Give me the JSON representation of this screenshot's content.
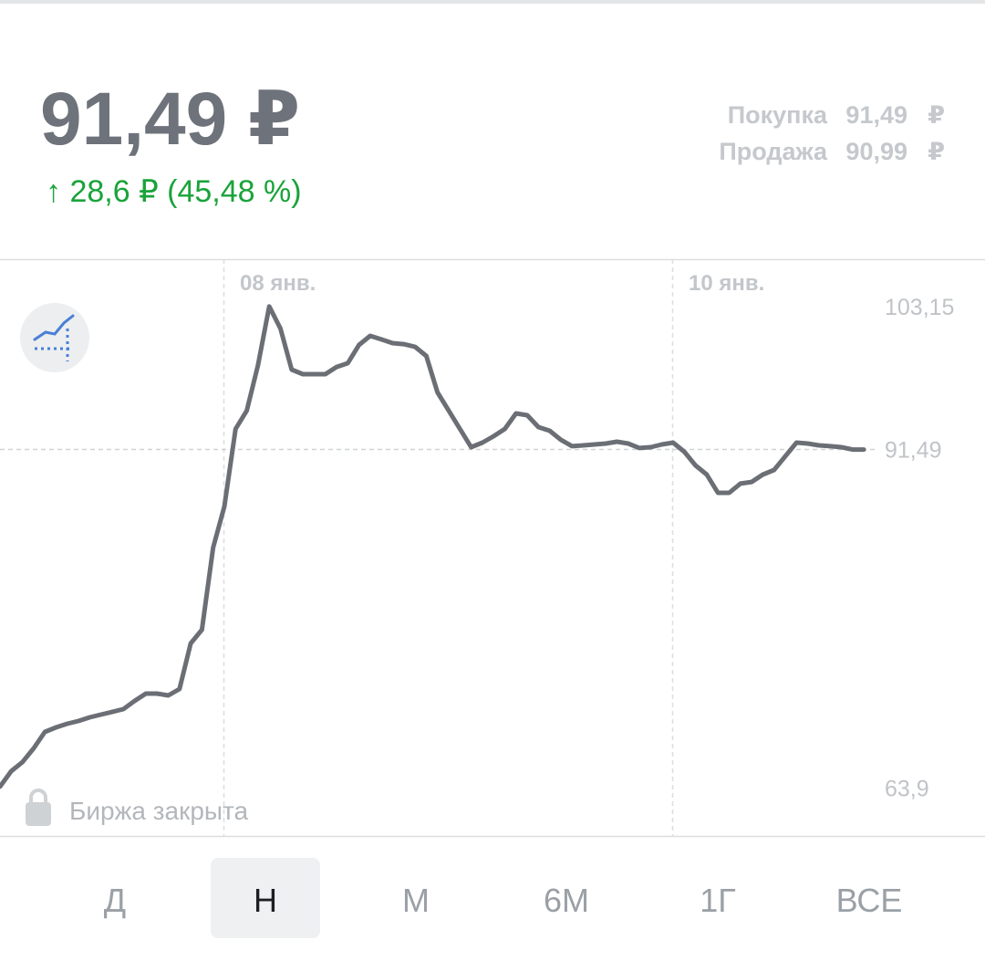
{
  "header": {
    "price": "91,49 ₽",
    "change": "↑ 28,6 ₽ (45,48 %)"
  },
  "quote": {
    "buy_label": "Покупка",
    "buy": "91,49",
    "sell_label": "Продажа",
    "sell": "90,99",
    "currency": "₽"
  },
  "chart_data": {
    "type": "line",
    "color": "#6b6f75",
    "categories": [
      null,
      null,
      null,
      null,
      null,
      null,
      null,
      null,
      null,
      null,
      null,
      null,
      null,
      null,
      null,
      null,
      null,
      null,
      null,
      null,
      "08 янв.",
      null,
      null,
      null,
      null,
      null,
      null,
      null,
      null,
      null,
      null,
      null,
      null,
      null,
      null,
      null,
      null,
      null,
      null,
      null,
      null,
      null,
      null,
      null,
      null,
      null,
      null,
      null,
      null,
      null,
      null,
      null,
      null,
      null,
      null,
      null,
      null,
      null,
      null,
      null,
      "10 янв.",
      null,
      null,
      null,
      null,
      null,
      null,
      null,
      null,
      null,
      null,
      null,
      null,
      null,
      null,
      null,
      null,
      null
    ],
    "values": [
      64.02,
      65.28,
      66.02,
      67.14,
      68.48,
      68.85,
      69.15,
      69.37,
      69.67,
      69.89,
      70.11,
      70.34,
      71.01,
      71.6,
      71.6,
      71.45,
      71.97,
      75.69,
      76.81,
      83.5,
      86.85,
      93.17,
      94.66,
      98.37,
      103.15,
      101.35,
      98.0,
      97.63,
      97.63,
      97.63,
      98.22,
      98.52,
      100.01,
      100.75,
      100.46,
      100.16,
      100.08,
      99.86,
      99.12,
      96.14,
      94.66,
      93.17,
      91.68,
      92.05,
      92.57,
      93.17,
      94.43,
      94.28,
      93.32,
      93.02,
      92.28,
      91.76,
      91.83,
      91.9,
      91.98,
      92.13,
      91.98,
      91.61,
      91.68,
      91.9,
      92.05,
      91.31,
      90.19,
      89.45,
      87.96,
      87.96,
      88.71,
      88.85,
      89.45,
      89.82,
      90.94,
      92.05,
      91.98,
      91.83,
      91.76,
      91.68,
      91.49,
      91.49
    ],
    "ylim": [
      60,
      107
    ],
    "yticks": [
      {
        "value": 103.15,
        "label": "103,15"
      },
      {
        "value": 91.49,
        "label": "91,49"
      },
      {
        "value": 63.9,
        "label": "63,9"
      }
    ],
    "reference_line": 91.49
  },
  "status": "Биржа закрыта",
  "periods": [
    "Д",
    "Н",
    "М",
    "6М",
    "1Г",
    "ВСЕ"
  ],
  "selected_period": "Н"
}
